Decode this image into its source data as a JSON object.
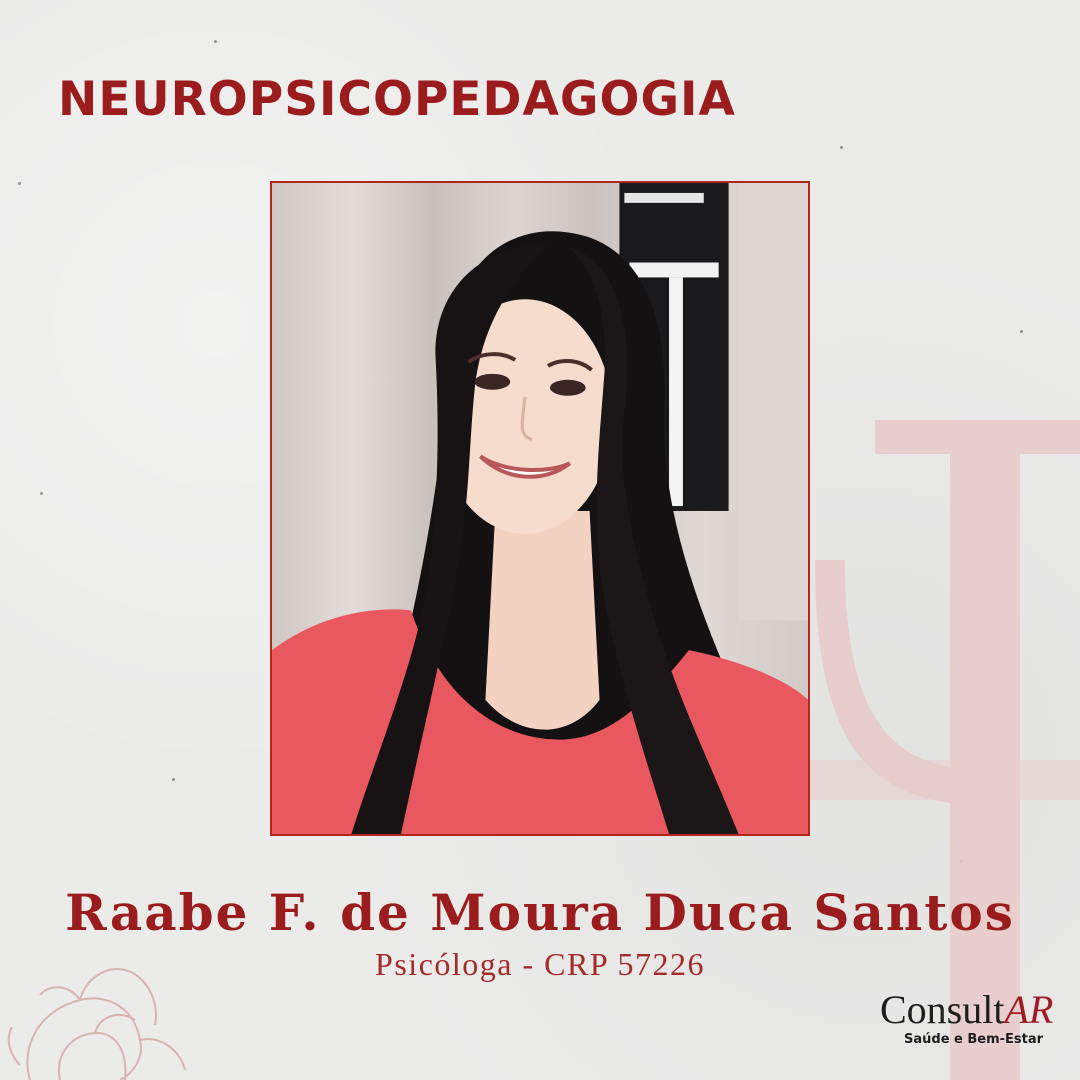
{
  "header": {
    "title": "NEUROPSICOPEDAGOGIA"
  },
  "profile": {
    "name": "Raabe F. de Moura Duca Santos",
    "role": "Psicóloga - CRP 57226"
  },
  "logo": {
    "brand_prefix": "Consult",
    "brand_suffix": "AR",
    "tagline": "Saúde e Bem-Estar"
  },
  "colors": {
    "accent": "#9b1c1c",
    "background": "#ebebea",
    "logo_accent": "#a01c25"
  },
  "icons": {
    "watermark": "psi-symbol-icon",
    "decoration": "flower-outline-icon"
  }
}
